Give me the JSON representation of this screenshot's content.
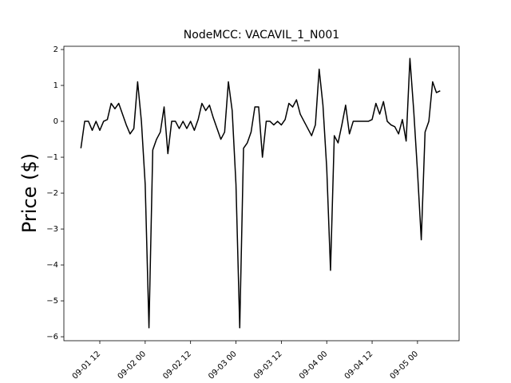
{
  "chart_data": {
    "type": "line",
    "title": "NodeMCC: VACAVIL_1_N001",
    "y_label": "Price ($)",
    "color": "#000000",
    "x": [
      "09-01 07",
      "09-01 08",
      "09-01 09",
      "09-01 10",
      "09-01 11",
      "09-01 12",
      "09-01 13",
      "09-01 14",
      "09-01 15",
      "09-01 16",
      "09-01 17",
      "09-01 18",
      "09-01 19",
      "09-01 20",
      "09-01 21",
      "09-01 22",
      "09-01 23",
      "09-02 00",
      "09-02 01",
      "09-02 02",
      "09-02 03",
      "09-02 04",
      "09-02 05",
      "09-02 06",
      "09-02 07",
      "09-02 08",
      "09-02 09",
      "09-02 10",
      "09-02 11",
      "09-02 12",
      "09-02 13",
      "09-02 14",
      "09-02 15",
      "09-02 16",
      "09-02 17",
      "09-02 18",
      "09-02 19",
      "09-02 20",
      "09-02 21",
      "09-02 22",
      "09-02 23",
      "09-03 00",
      "09-03 01",
      "09-03 02",
      "09-03 03",
      "09-03 04",
      "09-03 05",
      "09-03 06",
      "09-03 07",
      "09-03 08",
      "09-03 09",
      "09-03 10",
      "09-03 11",
      "09-03 12",
      "09-03 13",
      "09-03 14",
      "09-03 15",
      "09-03 16",
      "09-03 17",
      "09-03 18",
      "09-03 19",
      "09-03 20",
      "09-03 21",
      "09-03 22",
      "09-03 23",
      "09-04 00",
      "09-04 01",
      "09-04 02",
      "09-04 03",
      "09-04 04",
      "09-04 05",
      "09-04 06",
      "09-04 07",
      "09-04 08",
      "09-04 09",
      "09-04 10",
      "09-04 11",
      "09-04 12",
      "09-04 13",
      "09-04 14",
      "09-04 15",
      "09-04 16",
      "09-04 17",
      "09-04 18",
      "09-04 19",
      "09-04 20",
      "09-04 21",
      "09-04 22",
      "09-04 23",
      "09-05 00",
      "09-05 01",
      "09-05 02",
      "09-05 03",
      "09-05 04",
      "09-05 05",
      "09-05 06"
    ],
    "values": [
      -0.75,
      0,
      0,
      -0.25,
      0,
      -0.25,
      0,
      0.05,
      0.5,
      0.35,
      0.5,
      0.2,
      -0.1,
      -0.35,
      -0.2,
      1.1,
      0,
      -1.75,
      -5.75,
      -0.8,
      -0.5,
      -0.3,
      0.4,
      -0.9,
      0,
      0,
      -0.2,
      0,
      -0.2,
      0,
      -0.25,
      0.05,
      0.5,
      0.3,
      0.45,
      0.1,
      -0.2,
      -0.5,
      -0.3,
      1.1,
      0.3,
      -1.75,
      -5.75,
      -0.75,
      -0.6,
      -0.3,
      0.4,
      0.4,
      -1.0,
      0,
      0,
      -0.1,
      0,
      -0.1,
      0.05,
      0.5,
      0.4,
      0.6,
      0.2,
      0,
      -0.2,
      -0.4,
      -0.1,
      1.45,
      0.45,
      -1.3,
      -4.15,
      -0.4,
      -0.6,
      -0.1,
      0.45,
      -0.35,
      0,
      0,
      0,
      0,
      0,
      0.05,
      0.5,
      0.2,
      0.55,
      0,
      -0.1,
      -0.15,
      -0.35,
      0.05,
      -0.55,
      1.75,
      0.3,
      -1.4,
      -3.3,
      -0.3,
      0,
      1.1,
      0.8,
      0.85
    ],
    "xlim": [
      "09-01 02:30",
      "09-05 11:00"
    ],
    "xticks": [
      "09-01 12",
      "09-02 00",
      "09-02 12",
      "09-03 00",
      "09-03 12",
      "09-04 00",
      "09-04 12",
      "09-05 00"
    ],
    "ylim": [
      -6.11,
      2.09
    ],
    "yticks": [
      {
        "value": -6,
        "label": "−6"
      },
      {
        "value": -5,
        "label": "−5"
      },
      {
        "value": -4,
        "label": "−4"
      },
      {
        "value": -3,
        "label": "−3"
      },
      {
        "value": -2,
        "label": "−2"
      },
      {
        "value": -1,
        "label": "−1"
      },
      0,
      1,
      2
    ]
  }
}
